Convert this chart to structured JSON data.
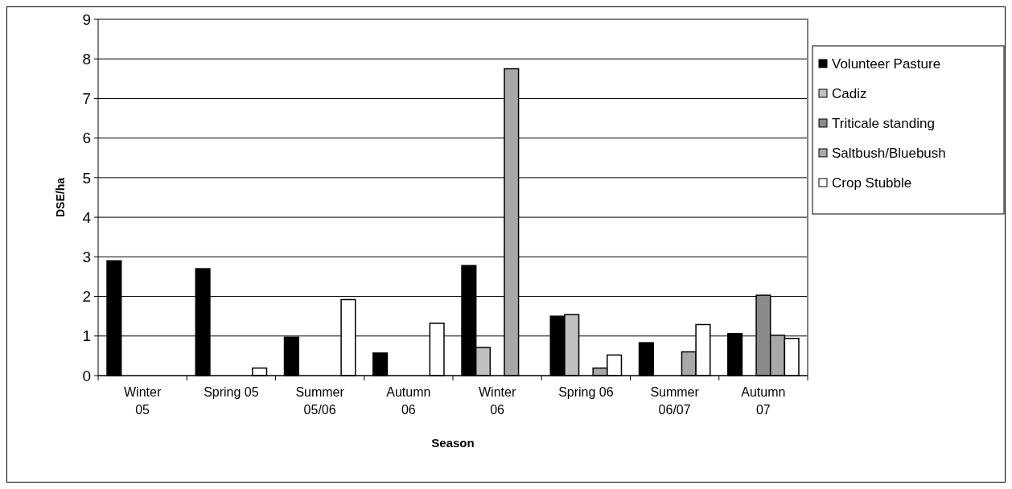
{
  "chart_data": {
    "type": "bar",
    "xlabel": "Season",
    "ylabel": "DSE/ha",
    "categories": [
      "Winter\n05",
      "Spring 05",
      "Summer\n05/06",
      "Autumn\n06",
      "Winter\n06",
      "Spring 06",
      "Summer\n06/07",
      "Autumn\n07"
    ],
    "series": [
      {
        "name": "Volunteer Pasture",
        "color": "#000000",
        "values": [
          2.9,
          2.7,
          0.97,
          0.57,
          2.78,
          1.5,
          0.83,
          1.06
        ]
      },
      {
        "name": "Cadiz",
        "color": "#c0c0c0",
        "values": [
          null,
          null,
          null,
          null,
          0.71,
          1.54,
          null,
          null
        ]
      },
      {
        "name": "Triticale standing",
        "color": "#8a8a8a",
        "values": [
          null,
          null,
          null,
          null,
          null,
          null,
          null,
          2.03
        ]
      },
      {
        "name": "Saltbush/Bluebush",
        "color": "#a8a8a8",
        "values": [
          null,
          null,
          null,
          null,
          7.75,
          0.19,
          0.6,
          1.02
        ]
      },
      {
        "name": "Crop Stubble",
        "color": "#ffffff",
        "values": [
          null,
          0.19,
          1.92,
          1.32,
          null,
          0.52,
          1.29,
          0.94
        ]
      }
    ],
    "ylim": [
      0,
      9
    ],
    "yticks": [
      0,
      1,
      2,
      3,
      4,
      5,
      6,
      7,
      8,
      9
    ],
    "grid": "y",
    "legend": "top right"
  }
}
